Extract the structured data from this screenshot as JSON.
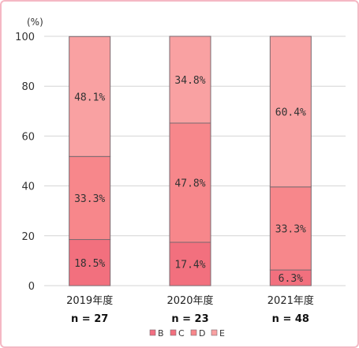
{
  "chart_data": {
    "type": "bar",
    "stacked": true,
    "unit_label": "(%)",
    "categories": [
      "2019年度",
      "2020年度",
      "2021年度"
    ],
    "sample_sizes": [
      "n = 27",
      "n = 23",
      "n = 48"
    ],
    "ylim": [
      0,
      100
    ],
    "yticks": [
      0,
      20,
      40,
      60,
      80,
      100
    ],
    "grid": true,
    "legend_position": "bottom",
    "series": [
      {
        "name": "B",
        "values": [
          0,
          0,
          0
        ],
        "labels": [
          "",
          "",
          ""
        ],
        "color": "#f26f82"
      },
      {
        "name": "C",
        "values": [
          18.5,
          17.4,
          6.3
        ],
        "labels": [
          "18.5%",
          "17.4%",
          "6.3%"
        ],
        "color": "#f2707e"
      },
      {
        "name": "D",
        "values": [
          33.3,
          47.8,
          33.3
        ],
        "labels": [
          "33.3%",
          "47.8%",
          "33.3%"
        ],
        "color": "#f7878b"
      },
      {
        "name": "E",
        "values": [
          48.1,
          34.8,
          60.4
        ],
        "labels": [
          "48.1%",
          "34.8%",
          "60.4%"
        ],
        "color": "#f9a1a2"
      }
    ]
  }
}
